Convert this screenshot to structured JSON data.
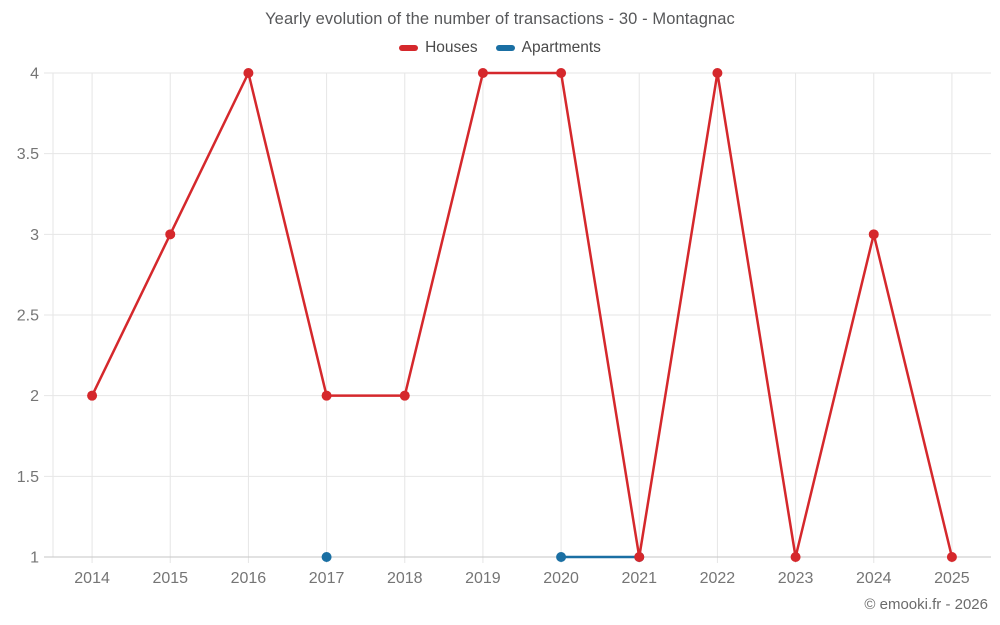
{
  "title": "Yearly evolution of the number of transactions - 30 - Montagnac",
  "footer": "© emooki.fr - 2026",
  "colors": {
    "houses": "#d5282c",
    "apartments": "#1a6fa3",
    "gridline": "#e6e6e6",
    "axis_line": "#c6c6c6",
    "axis_label": "#757575",
    "title_text": "#57585a",
    "legend_text": "#4a4a4a",
    "footer_text": "#6b6b6b",
    "background": "#ffffff"
  },
  "chart_data": {
    "type": "line",
    "title": "Yearly evolution of the number of transactions - 30 - Montagnac",
    "categories": [
      "2014",
      "2015",
      "2016",
      "2017",
      "2018",
      "2019",
      "2020",
      "2021",
      "2022",
      "2023",
      "2024",
      "2025"
    ],
    "series": [
      {
        "name": "Houses",
        "color": "#d5282c",
        "values": [
          2,
          3,
          4,
          2,
          2,
          4,
          4,
          1,
          4,
          1,
          3,
          1
        ]
      },
      {
        "name": "Apartments",
        "color": "#1a6fa3",
        "values": [
          null,
          null,
          null,
          1,
          null,
          null,
          1,
          1,
          null,
          null,
          null,
          null
        ]
      }
    ],
    "xlabel": "",
    "ylabel": "",
    "ylim": [
      1,
      4
    ],
    "ytick_step": 0.5,
    "ytick_labels": [
      "1",
      "1.5",
      "2",
      "2.5",
      "3",
      "3.5",
      "4"
    ],
    "grid": true,
    "legend_position": "top",
    "marker_radius": 5,
    "line_width": 2.5
  }
}
